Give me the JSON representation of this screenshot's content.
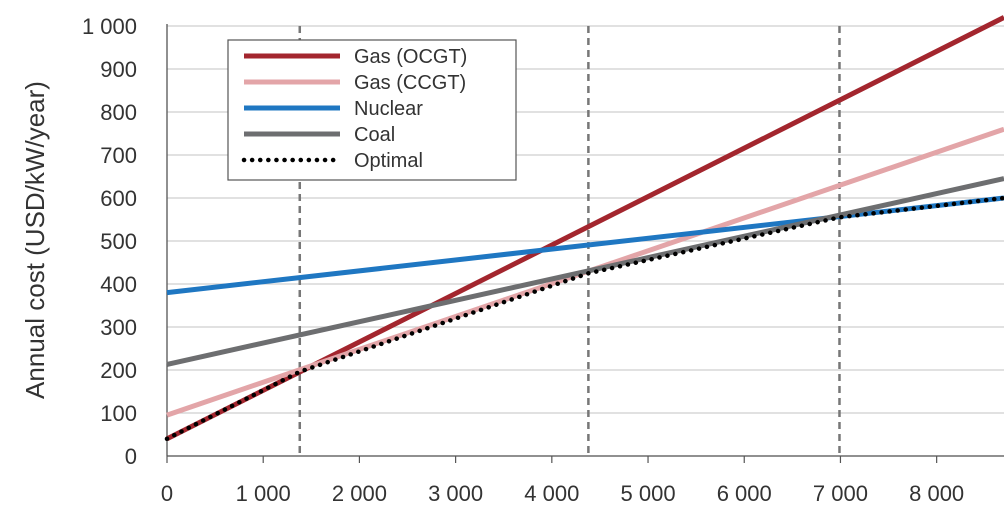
{
  "chart_data": {
    "type": "line",
    "title": "",
    "xlabel": "",
    "ylabel": "Annual cost (USD/kW/year)",
    "xlim": [
      0,
      8700
    ],
    "ylim": [
      0,
      1000
    ],
    "x_ticks": [
      0,
      1000,
      2000,
      3000,
      4000,
      5000,
      6000,
      7000,
      8000
    ],
    "y_ticks": [
      0,
      100,
      200,
      300,
      400,
      500,
      600,
      700,
      800,
      900,
      1000
    ],
    "x_tick_labels": [
      "0",
      "1 000",
      "2 000",
      "3 000",
      "4 000",
      "5 000",
      "6 000",
      "7 000",
      "8 000"
    ],
    "y_tick_labels": [
      "0",
      "100",
      "200",
      "300",
      "400",
      "500",
      "600",
      "700",
      "800",
      "900",
      "1 000"
    ],
    "grid": true,
    "legend_position": "top-left",
    "vertical_reference_lines": [
      1380,
      4380,
      6990
    ],
    "series": [
      {
        "name": "Gas (OCGT)",
        "color": "#a3262e",
        "dash": "solid",
        "points": [
          [
            0,
            40
          ],
          [
            8700,
            1020
          ]
        ]
      },
      {
        "name": "Gas (CCGT)",
        "color": "#e3a5a8",
        "dash": "solid",
        "points": [
          [
            0,
            95
          ],
          [
            8700,
            760
          ]
        ]
      },
      {
        "name": "Nuclear",
        "color": "#1f77c2",
        "dash": "solid",
        "points": [
          [
            0,
            380
          ],
          [
            8700,
            600
          ]
        ]
      },
      {
        "name": "Coal",
        "color": "#6d6e70",
        "dash": "solid",
        "points": [
          [
            0,
            213
          ],
          [
            8700,
            645
          ]
        ]
      },
      {
        "name": "Optimal",
        "color": "#000000",
        "dash": "dotted",
        "points": [
          [
            0,
            40
          ],
          [
            1380,
            196
          ],
          [
            4380,
            425
          ],
          [
            6990,
            555
          ],
          [
            8700,
            600
          ]
        ]
      }
    ]
  }
}
